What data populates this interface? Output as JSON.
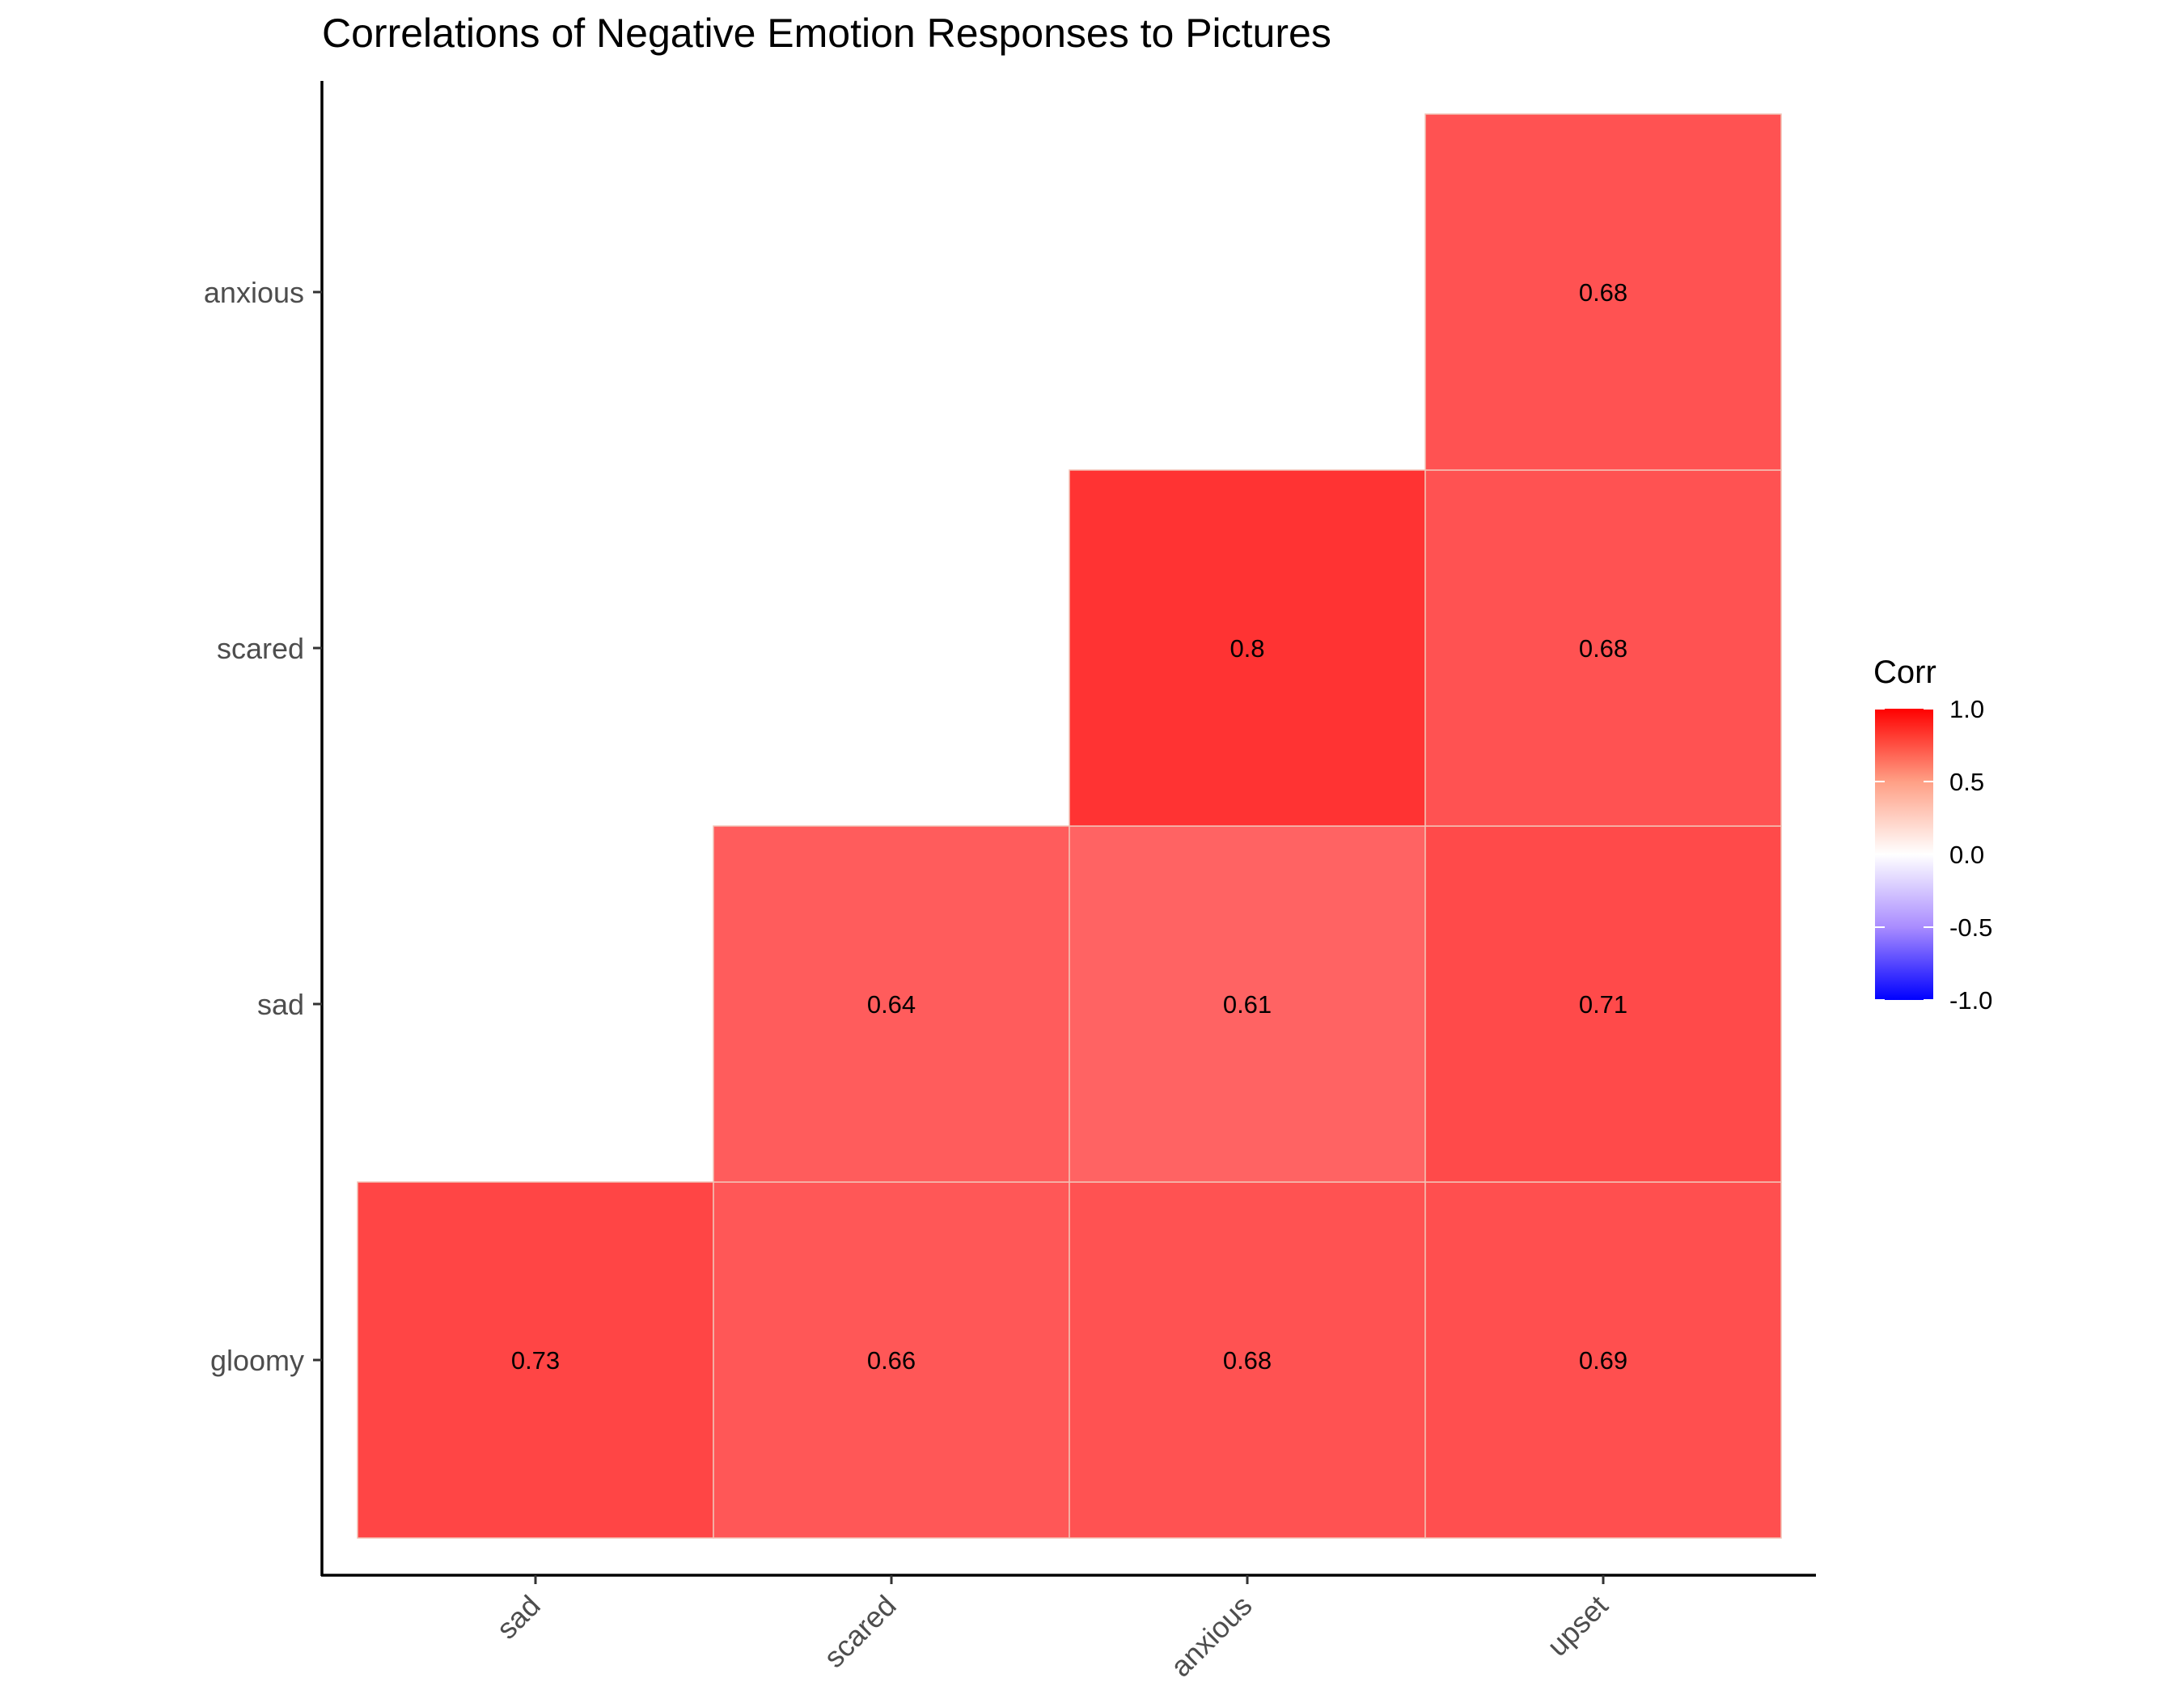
{
  "chart_data": {
    "type": "heatmap",
    "title": "Correlations of Negative Emotion Responses to Pictures",
    "x_categories": [
      "sad",
      "scared",
      "anxious",
      "upset"
    ],
    "y_categories": [
      "gloomy",
      "sad",
      "scared",
      "anxious"
    ],
    "cells": [
      {
        "x": "sad",
        "y": "gloomy",
        "value": 0.73,
        "label": "0.73"
      },
      {
        "x": "scared",
        "y": "gloomy",
        "value": 0.66,
        "label": "0.66"
      },
      {
        "x": "anxious",
        "y": "gloomy",
        "value": 0.68,
        "label": "0.68"
      },
      {
        "x": "upset",
        "y": "gloomy",
        "value": 0.69,
        "label": "0.69"
      },
      {
        "x": "scared",
        "y": "sad",
        "value": 0.64,
        "label": "0.64"
      },
      {
        "x": "anxious",
        "y": "sad",
        "value": 0.61,
        "label": "0.61"
      },
      {
        "x": "upset",
        "y": "sad",
        "value": 0.71,
        "label": "0.71"
      },
      {
        "x": "anxious",
        "y": "scared",
        "value": 0.8,
        "label": "0.8"
      },
      {
        "x": "upset",
        "y": "scared",
        "value": 0.68,
        "label": "0.68"
      },
      {
        "x": "upset",
        "y": "anxious",
        "value": 0.68,
        "label": "0.68"
      }
    ],
    "legend": {
      "title": "Corr",
      "range": [
        -1.0,
        1.0
      ],
      "ticks": [
        1.0,
        0.5,
        0.0,
        -0.5,
        -1.0
      ],
      "tick_labels": [
        "1.0",
        "0.5",
        "0.0",
        "-0.5",
        "-1.0"
      ],
      "low_color": "#0000ff",
      "mid_color": "#ffffff",
      "high_color": "#ff0000",
      "placement": "right"
    },
    "grid": false,
    "x_tick_rotation": "45 degrees"
  }
}
